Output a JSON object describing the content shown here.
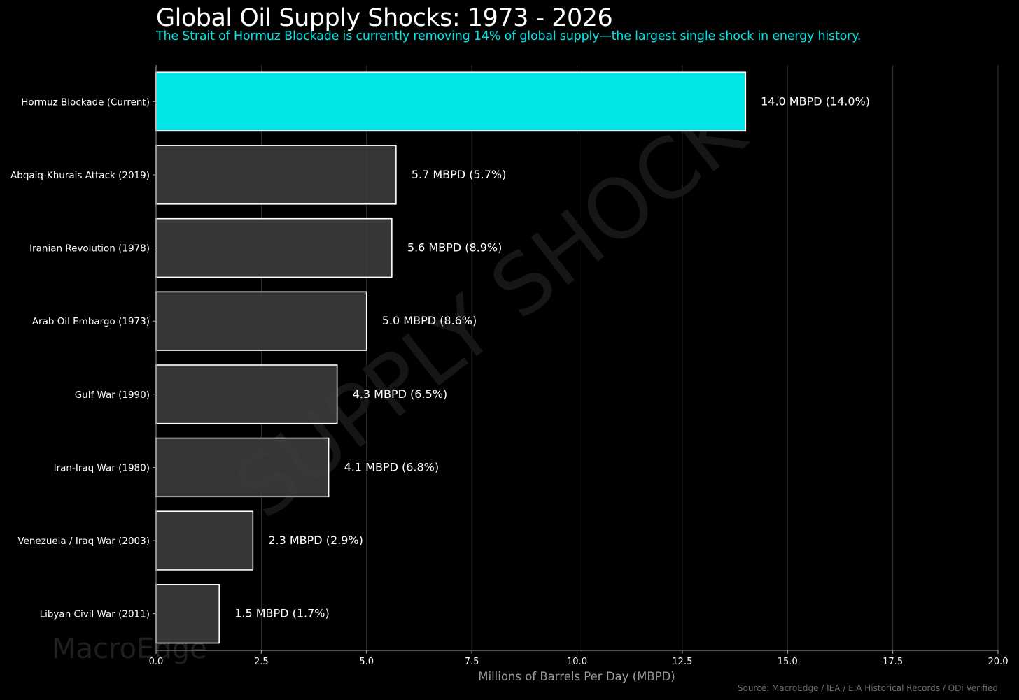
{
  "chart_data": {
    "type": "bar",
    "orientation": "horizontal",
    "title": "Global Oil Supply Shocks: 1973 - 2026",
    "subtitle": "The Strait of Hormuz Blockade is currently removing 14% of global supply—the largest single shock in energy history.",
    "xlabel": "Millions of Barrels Per Day (MBPD)",
    "ylabel": "",
    "xlim": [
      0,
      20
    ],
    "xticks": [
      "0.0",
      "2.5",
      "5.0",
      "7.5",
      "10.0",
      "12.5",
      "15.0",
      "17.5",
      "20.0"
    ],
    "grid": "vertical",
    "categories": [
      "Hormuz Blockade (Current)",
      "Abqaiq-Khurais Attack (2019)",
      "Iranian Revolution (1978)",
      "Arab Oil Embargo (1973)",
      "Gulf War (1990)",
      "Iran-Iraq War (1980)",
      "Venezuela / Iraq War (2003)",
      "Libyan Civil War (2011)"
    ],
    "values": [
      14.0,
      5.7,
      5.6,
      5.0,
      4.3,
      4.1,
      2.3,
      1.5
    ],
    "data_labels": [
      "14.0 MBPD (14.0%)",
      "5.7 MBPD (5.7%)",
      "5.6 MBPD (8.9%)",
      "5.0 MBPD (8.6%)",
      "4.3 MBPD (6.5%)",
      "4.1 MBPD (6.8%)",
      "2.3 MBPD (2.9%)",
      "1.5 MBPD (1.7%)"
    ],
    "highlight_index": 0,
    "colors": {
      "highlight": "#00e5e5",
      "bar": "#3c3c3c",
      "edge": "#ffffff",
      "grid": "#333333",
      "background": "#000000"
    },
    "watermark_center": "SUPPLY SHOCK",
    "watermark_corner": "MacroEdge",
    "source": "Source: MacroEdge / IEA / EIA Historical Records / ODi Verified"
  }
}
